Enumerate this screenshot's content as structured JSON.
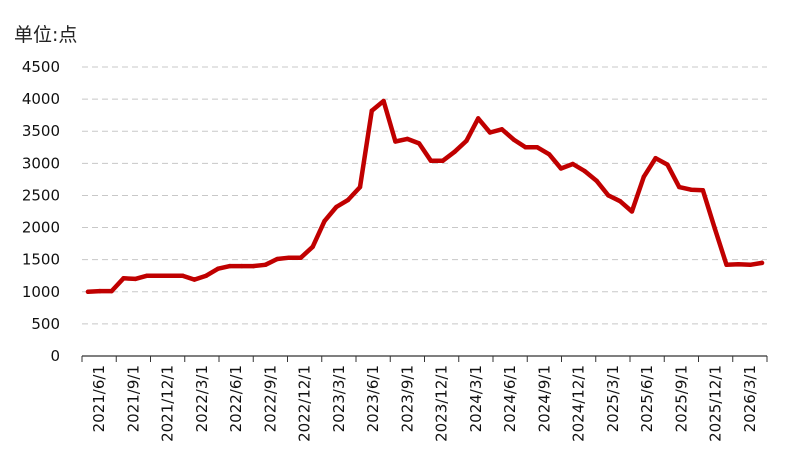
{
  "unit_label": "单位:点",
  "colors": {
    "line": "#c00000",
    "grid": "#c8c8c8",
    "axis": "#333333"
  },
  "chart_data": {
    "type": "line",
    "title": "",
    "xlabel": "",
    "ylabel": "单位:点",
    "ylim": [
      0,
      4500
    ],
    "yticks": [
      0,
      500,
      1000,
      1500,
      2000,
      2500,
      3000,
      3500,
      4000,
      4500
    ],
    "grid": "horizontal dashed",
    "x_tick_labels": [
      "2021/6/1",
      "2021/9/1",
      "2021/12/1",
      "2022/3/1",
      "2022/6/1",
      "2022/9/1",
      "2022/12/1",
      "2023/3/1",
      "2023/6/1",
      "2023/9/1",
      "2023/12/1",
      "2024/3/1",
      "2024/6/1",
      "2024/9/1",
      "2024/12/1",
      "2025/3/1",
      "2025/6/1",
      "2025/9/1",
      "2025/12/1",
      "2026/3/1"
    ],
    "series": [
      {
        "values": [
          1000,
          1010,
          1010,
          1210,
          1200,
          1250,
          1250,
          1250,
          1250,
          1190,
          1250,
          1360,
          1400,
          1400,
          1400,
          1420,
          1510,
          1530,
          1530,
          1700,
          2100,
          2320,
          2430,
          2630,
          3820,
          3970,
          3340,
          3380,
          3310,
          3040,
          3040,
          3180,
          3350,
          3700,
          3480,
          3530,
          3370,
          3250,
          3250,
          3140,
          2920,
          2990,
          2880,
          2730,
          2500,
          2410,
          2250,
          2790,
          3080,
          2980,
          2630,
          2590,
          2580,
          1990,
          1420,
          1430,
          1420,
          1450
        ]
      }
    ]
  }
}
